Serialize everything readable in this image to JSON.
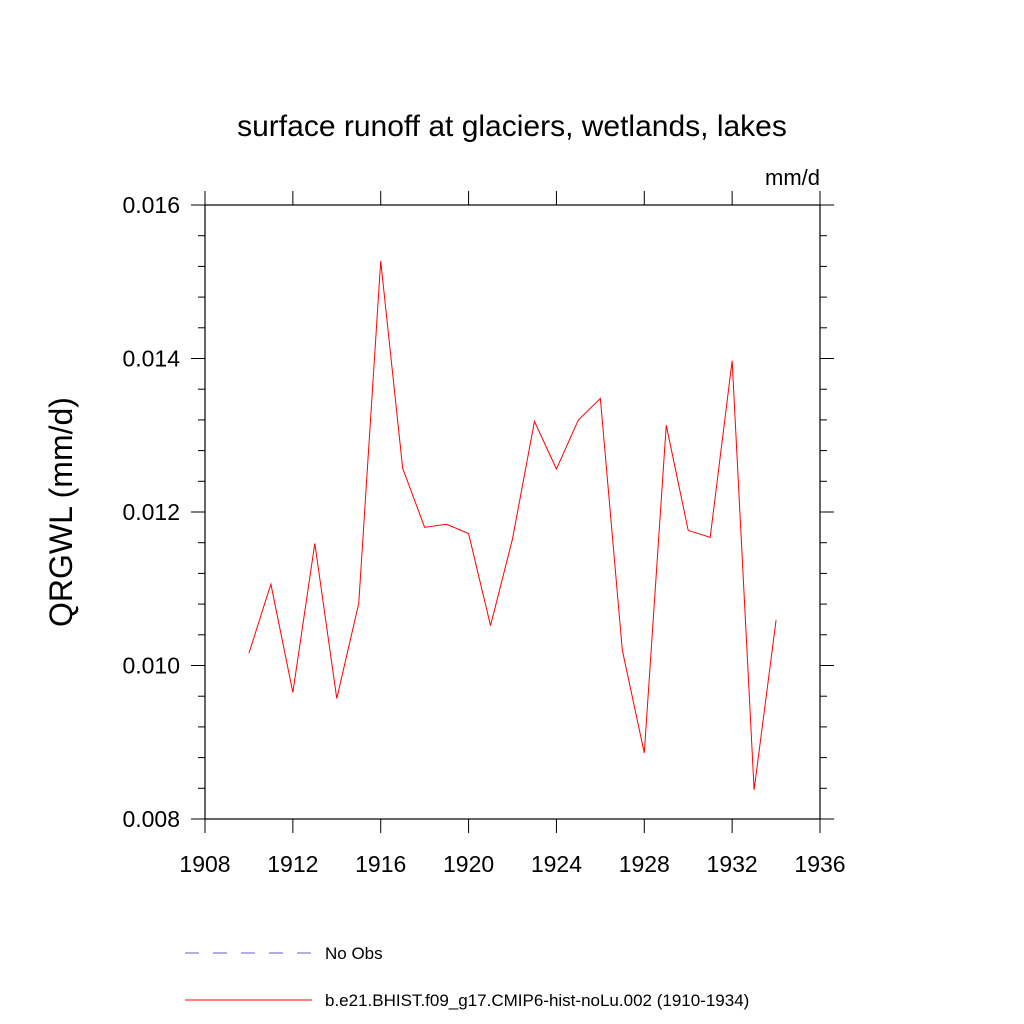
{
  "chart_data": {
    "type": "line",
    "title": "surface runoff at glaciers, wetlands, lakes",
    "units_label": "mm/d",
    "ylabel": "QRGWL  (mm/d)",
    "xlabel": "",
    "xlim": [
      1908,
      1936
    ],
    "ylim": [
      0.008,
      0.016
    ],
    "x_ticks": [
      1908,
      1912,
      1916,
      1920,
      1924,
      1928,
      1932,
      1936
    ],
    "x_tick_labels": [
      "1908",
      "1912",
      "1916",
      "1920",
      "1924",
      "1928",
      "1932",
      "1936"
    ],
    "y_ticks": [
      0.008,
      0.01,
      0.012,
      0.014,
      0.016
    ],
    "y_tick_labels": [
      "0.008",
      "0.010",
      "0.012",
      "0.014",
      "0.016"
    ],
    "grid": false,
    "legend_position": "bottom",
    "series": [
      {
        "name": "b.e21.BHIST.f09_g17.CMIP6-hist-noLu.002 (1910-1934)",
        "color": "#ff0000",
        "dash": "solid",
        "x": [
          1910,
          1911,
          1912,
          1913,
          1914,
          1915,
          1916,
          1917,
          1918,
          1919,
          1920,
          1921,
          1922,
          1923,
          1924,
          1925,
          1926,
          1927,
          1928,
          1929,
          1930,
          1931,
          1932,
          1933,
          1934
        ],
        "y": [
          0.01016,
          0.01106,
          0.00965,
          0.01159,
          0.00957,
          0.01081,
          0.01527,
          0.01257,
          0.0118,
          0.01184,
          0.01172,
          0.01052,
          0.01165,
          0.01318,
          0.01256,
          0.0132,
          0.01348,
          0.0102,
          0.00886,
          0.01313,
          0.01176,
          0.01167,
          0.01397,
          0.00838,
          0.01059
        ]
      }
    ],
    "legend": [
      {
        "label": "No Obs",
        "color": "#6a5acd",
        "dash": "dashed"
      },
      {
        "label": "b.e21.BHIST.f09_g17.CMIP6-hist-noLu.002 (1910-1934)",
        "color": "#ff0000",
        "dash": "solid"
      }
    ]
  }
}
